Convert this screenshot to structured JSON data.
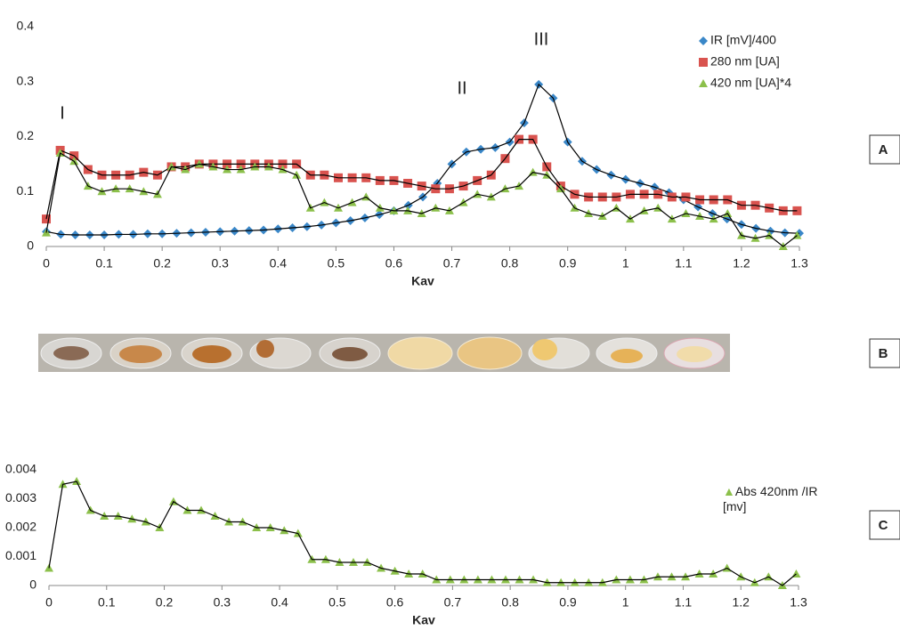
{
  "panels": {
    "labels": [
      "A",
      "B",
      "C"
    ]
  },
  "chart_data": [
    {
      "type": "line",
      "x_label": "Kav",
      "annotations": [
        "I",
        "II",
        "III"
      ],
      "x": [
        0,
        0.024,
        0.048,
        0.072,
        0.096,
        0.12,
        0.144,
        0.168,
        0.192,
        0.216,
        0.24,
        0.264,
        0.288,
        0.312,
        0.336,
        0.36,
        0.384,
        0.408,
        0.432,
        0.456,
        0.48,
        0.504,
        0.528,
        0.552,
        0.576,
        0.6,
        0.624,
        0.648,
        0.672,
        0.696,
        0.72,
        0.744,
        0.768,
        0.792,
        0.816,
        0.84,
        0.864,
        0.888,
        0.912,
        0.936,
        0.96,
        0.984,
        1.008,
        1.032,
        1.056,
        1.08,
        1.104,
        1.128,
        1.152,
        1.176,
        1.2,
        1.224,
        1.248,
        1.272,
        1.296
      ],
      "series": [
        {
          "name": "IR [mV]/400",
          "color": "#3a87c8",
          "marker": "diamond",
          "x": [
            0,
            0.025,
            0.05,
            0.075,
            0.1,
            0.125,
            0.15,
            0.175,
            0.2,
            0.225,
            0.25,
            0.275,
            0.3,
            0.325,
            0.35,
            0.375,
            0.4,
            0.425,
            0.45,
            0.475,
            0.5,
            0.525,
            0.55,
            0.575,
            0.6,
            0.625,
            0.65,
            0.675,
            0.7,
            0.725,
            0.75,
            0.775,
            0.8,
            0.825,
            0.85,
            0.875,
            0.9,
            0.925,
            0.95,
            0.975,
            1,
            1.025,
            1.05,
            1.075,
            1.1,
            1.125,
            1.15,
            1.175,
            1.2,
            1.225,
            1.25,
            1.275,
            1.3
          ],
          "values": [
            0.027,
            0.022,
            0.021,
            0.021,
            0.021,
            0.022,
            0.022,
            0.023,
            0.023,
            0.024,
            0.025,
            0.026,
            0.027,
            0.028,
            0.029,
            0.03,
            0.032,
            0.034,
            0.036,
            0.039,
            0.043,
            0.047,
            0.052,
            0.058,
            0.065,
            0.075,
            0.09,
            0.115,
            0.15,
            0.172,
            0.177,
            0.18,
            0.19,
            0.225,
            0.295,
            0.27,
            0.19,
            0.155,
            0.14,
            0.13,
            0.122,
            0.115,
            0.108,
            0.098,
            0.085,
            0.072,
            0.06,
            0.05,
            0.04,
            0.033,
            0.028,
            0.025,
            0.024
          ]
        },
        {
          "name": "280 nm [UA]",
          "color": "#d9534f",
          "marker": "square",
          "values": [
            0.05,
            0.175,
            0.165,
            0.14,
            0.13,
            0.13,
            0.13,
            0.135,
            0.13,
            0.145,
            0.145,
            0.15,
            0.15,
            0.15,
            0.15,
            0.15,
            0.15,
            0.15,
            0.15,
            0.13,
            0.13,
            0.125,
            0.125,
            0.125,
            0.12,
            0.12,
            0.115,
            0.11,
            0.105,
            0.105,
            0.11,
            0.12,
            0.13,
            0.16,
            0.195,
            0.195,
            0.145,
            0.11,
            0.095,
            0.09,
            0.09,
            0.09,
            0.095,
            0.095,
            0.095,
            0.09,
            0.09,
            0.085,
            0.085,
            0.085,
            0.075,
            0.075,
            0.07,
            0.065,
            0.065
          ]
        },
        {
          "name": "420 nm [UA]*4",
          "color": "#8cc04b",
          "marker": "triangle",
          "values": [
            0.025,
            0.17,
            0.155,
            0.11,
            0.1,
            0.105,
            0.105,
            0.1,
            0.095,
            0.145,
            0.14,
            0.15,
            0.145,
            0.14,
            0.14,
            0.145,
            0.145,
            0.14,
            0.13,
            0.07,
            0.08,
            0.07,
            0.08,
            0.09,
            0.07,
            0.065,
            0.065,
            0.06,
            0.07,
            0.065,
            0.08,
            0.095,
            0.09,
            0.105,
            0.11,
            0.135,
            0.13,
            0.105,
            0.07,
            0.06,
            0.055,
            0.07,
            0.05,
            0.065,
            0.07,
            0.05,
            0.06,
            0.055,
            0.05,
            0.06,
            0.02,
            0.015,
            0.02,
            0,
            0.02
          ]
        }
      ],
      "connect_color": "#000000",
      "xlim": [
        0,
        1.3
      ],
      "xticks": [
        0,
        0.1,
        0.2,
        0.3,
        0.4,
        0.5,
        0.6,
        0.7,
        0.8,
        0.9,
        1,
        1.1,
        1.2,
        1.3
      ],
      "ylim": [
        0,
        0.4
      ],
      "yticks": [
        0,
        0.1,
        0.2,
        0.3,
        0.4
      ],
      "grid": false
    },
    {
      "type": "line",
      "x_label": "Kav",
      "x": [
        0,
        0.024,
        0.048,
        0.072,
        0.096,
        0.12,
        0.144,
        0.168,
        0.192,
        0.216,
        0.24,
        0.264,
        0.288,
        0.312,
        0.336,
        0.36,
        0.384,
        0.408,
        0.432,
        0.456,
        0.48,
        0.504,
        0.528,
        0.552,
        0.576,
        0.6,
        0.624,
        0.648,
        0.672,
        0.696,
        0.72,
        0.744,
        0.768,
        0.792,
        0.816,
        0.84,
        0.864,
        0.888,
        0.912,
        0.936,
        0.96,
        0.984,
        1.008,
        1.032,
        1.056,
        1.08,
        1.104,
        1.128,
        1.152,
        1.176,
        1.2,
        1.224,
        1.248,
        1.272,
        1.296
      ],
      "series": [
        {
          "name": "Abs 420nm /IR [mv]",
          "color": "#8cc04b",
          "marker": "triangle",
          "values": [
            0.0006,
            0.0035,
            0.0036,
            0.0026,
            0.0024,
            0.0024,
            0.0023,
            0.0022,
            0.002,
            0.0029,
            0.0026,
            0.0026,
            0.0024,
            0.0022,
            0.0022,
            0.002,
            0.002,
            0.0019,
            0.0018,
            0.0009,
            0.0009,
            0.0008,
            0.0008,
            0.0008,
            0.0006,
            0.0005,
            0.0004,
            0.0004,
            0.0002,
            0.0002,
            0.0002,
            0.0002,
            0.0002,
            0.0002,
            0.0002,
            0.0002,
            0.0001,
            0.0001,
            0.0001,
            0.0001,
            0.0001,
            0.0002,
            0.0002,
            0.0002,
            0.0003,
            0.0003,
            0.0003,
            0.0004,
            0.0004,
            0.0006,
            0.0003,
            0.0001,
            0.0003,
            0,
            0.0004
          ]
        }
      ],
      "connect_color": "#000000",
      "xlim": [
        0,
        1.3
      ],
      "xticks": [
        0,
        0.1,
        0.2,
        0.3,
        0.4,
        0.5,
        0.6,
        0.7,
        0.8,
        0.9,
        1,
        1.1,
        1.2,
        1.3
      ],
      "ylim": [
        0,
        0.004
      ],
      "yticks": [
        0,
        0.001,
        0.002,
        0.003,
        0.004
      ],
      "grid": false
    }
  ]
}
